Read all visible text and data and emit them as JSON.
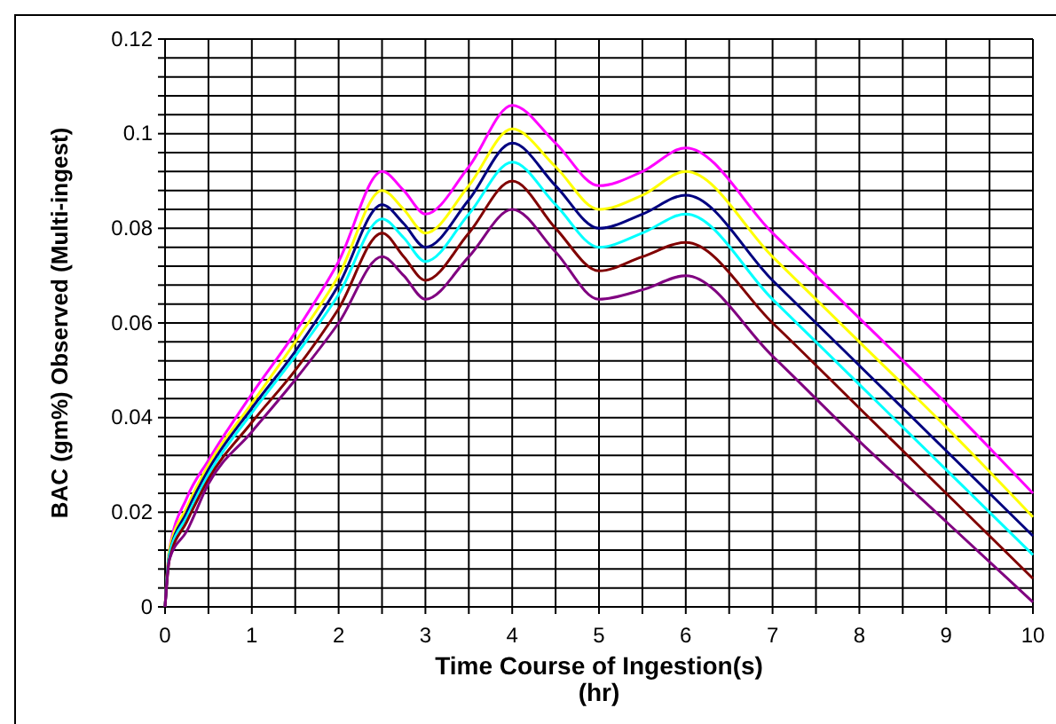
{
  "chart_data": {
    "type": "line",
    "xlabel": "Time Course of Ingestion(s)\n(hr)",
    "ylabel": "BAC (gm%) Observed (Multi-ingest)",
    "x": [
      0,
      0.05,
      0.25,
      0.5,
      1,
      1.5,
      2,
      2.5,
      2.75,
      3,
      3.5,
      4,
      4.5,
      5,
      5.5,
      6,
      7,
      8,
      9,
      10
    ],
    "series": [
      {
        "color": "#ff00ff",
        "values": [
          0,
          0.012,
          0.023,
          0.031,
          0.045,
          0.058,
          0.073,
          0.092,
          0.088,
          0.083,
          0.093,
          0.106,
          0.098,
          0.089,
          0.092,
          0.097,
          0.079,
          0.061,
          0.043,
          0.024
        ]
      },
      {
        "color": "#ffff00",
        "values": [
          0,
          0.012,
          0.021,
          0.03,
          0.043,
          0.056,
          0.07,
          0.088,
          0.084,
          0.079,
          0.089,
          0.101,
          0.093,
          0.084,
          0.087,
          0.092,
          0.074,
          0.056,
          0.038,
          0.019
        ]
      },
      {
        "color": "#000080",
        "values": [
          0,
          0.011,
          0.02,
          0.029,
          0.042,
          0.054,
          0.068,
          0.085,
          0.081,
          0.076,
          0.086,
          0.098,
          0.089,
          0.08,
          0.083,
          0.087,
          0.069,
          0.051,
          0.033,
          0.015
        ]
      },
      {
        "color": "#00ffff",
        "values": [
          0,
          0.011,
          0.019,
          0.028,
          0.041,
          0.053,
          0.066,
          0.082,
          0.078,
          0.073,
          0.083,
          0.094,
          0.085,
          0.076,
          0.079,
          0.083,
          0.065,
          0.047,
          0.029,
          0.011
        ]
      },
      {
        "color": "#800000",
        "values": [
          0,
          0.01,
          0.018,
          0.027,
          0.039,
          0.05,
          0.063,
          0.079,
          0.074,
          0.069,
          0.079,
          0.09,
          0.08,
          0.071,
          0.074,
          0.077,
          0.06,
          0.042,
          0.024,
          0.006
        ]
      },
      {
        "color": "#800080",
        "values": [
          0,
          0.01,
          0.016,
          0.026,
          0.037,
          0.048,
          0.06,
          0.074,
          0.07,
          0.065,
          0.074,
          0.084,
          0.075,
          0.065,
          0.067,
          0.07,
          0.053,
          0.035,
          0.018,
          0.001
        ]
      }
    ],
    "xlim": [
      0,
      10
    ],
    "xticks": [
      0,
      {
        "value": 0.5,
        "label": null
      },
      1,
      {
        "value": 1.5,
        "label": null
      },
      2,
      {
        "value": 2.5,
        "label": null
      },
      3,
      {
        "value": 3.5,
        "label": null
      },
      4,
      {
        "value": 4.5,
        "label": null
      },
      5,
      {
        "value": 5.5,
        "label": null
      },
      6,
      {
        "value": 6.5,
        "label": null
      },
      7,
      {
        "value": 7.5,
        "label": null
      },
      8,
      {
        "value": 8.5,
        "label": null
      },
      9,
      {
        "value": 9.5,
        "label": null
      },
      10
    ],
    "ylim": [
      0,
      0.12
    ],
    "yticks": [
      0,
      {
        "value": 0.004,
        "label": null
      },
      {
        "value": 0.008,
        "label": null
      },
      {
        "value": 0.012,
        "label": null
      },
      {
        "value": 0.016,
        "label": null
      },
      0.02,
      {
        "value": 0.024,
        "label": null
      },
      {
        "value": 0.028,
        "label": null
      },
      {
        "value": 0.032,
        "label": null
      },
      {
        "value": 0.036,
        "label": null
      },
      0.04,
      {
        "value": 0.044,
        "label": null
      },
      {
        "value": 0.048,
        "label": null
      },
      {
        "value": 0.052,
        "label": null
      },
      {
        "value": 0.056,
        "label": null
      },
      0.06,
      {
        "value": 0.064,
        "label": null
      },
      {
        "value": 0.068,
        "label": null
      },
      {
        "value": 0.072,
        "label": null
      },
      {
        "value": 0.076,
        "label": null
      },
      0.08,
      {
        "value": 0.084,
        "label": null
      },
      {
        "value": 0.088,
        "label": null
      },
      {
        "value": 0.092,
        "label": null
      },
      {
        "value": 0.096,
        "label": null
      },
      0.1,
      {
        "value": 0.104,
        "label": null
      },
      {
        "value": 0.108,
        "label": null
      },
      {
        "value": 0.112,
        "label": null
      },
      {
        "value": 0.116,
        "label": null
      },
      0.12
    ],
    "grid": true,
    "marker": "none",
    "line_style": "solid"
  }
}
